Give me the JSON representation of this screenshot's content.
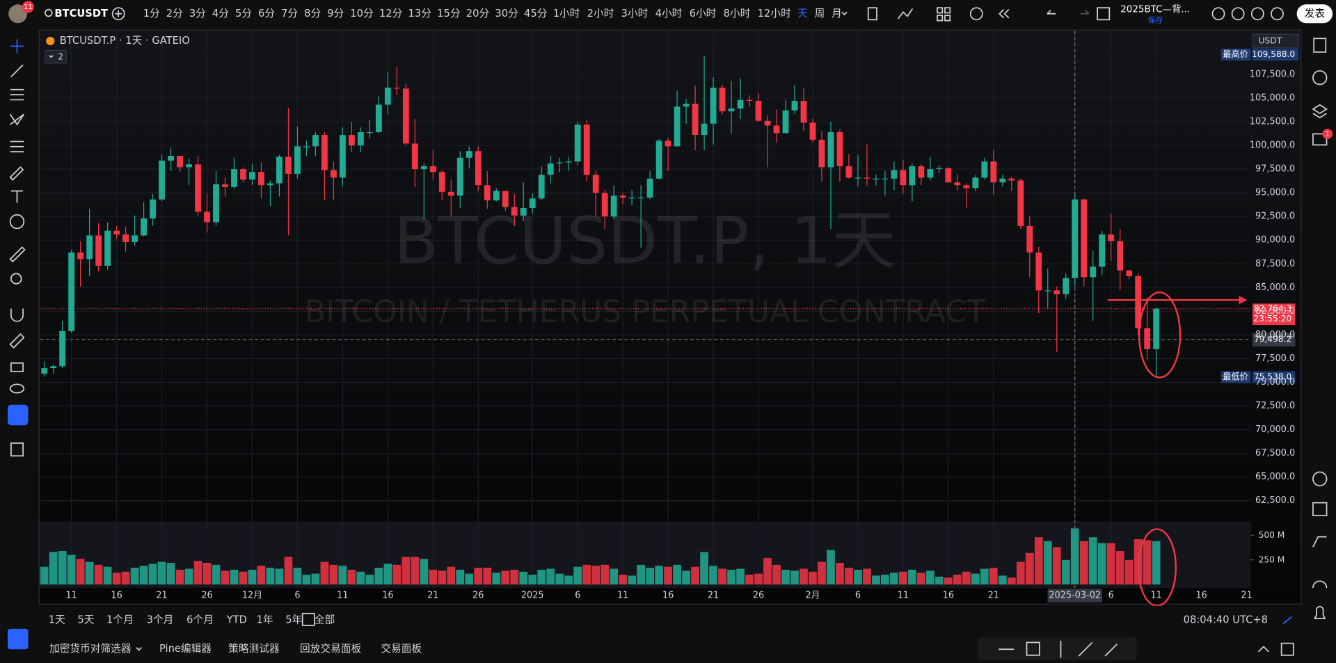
{
  "toolbar": {
    "badge": "11",
    "symbol": "BTCUSDT",
    "intervals": [
      "1分",
      "2分",
      "3分",
      "4分",
      "5分",
      "6分",
      "7分",
      "8分",
      "9分",
      "10分",
      "12分",
      "13分",
      "15分",
      "20分",
      "30分",
      "45分",
      "1小时",
      "2小时",
      "3小时",
      "4小时",
      "6小时",
      "8小时",
      "12小时",
      "天",
      "周",
      "月"
    ],
    "layout_name": "2025BTC—背...",
    "save": "保存",
    "publish": "发表"
  },
  "chart_data": {
    "type": "candlestick",
    "legend_title": "BTCUSDT.P · 1天 · GATEIO",
    "indicator_count": "2",
    "watermark": "BTCUSDT.P, 1天",
    "watermark_sub": "BITCOIN / TETHERUS PERPETUAL CONTRACT",
    "currency": "USDT",
    "up_color": "#22ab94",
    "down_color": "#f23645",
    "categories": [
      null,
      null,
      null,
      "11",
      null,
      null,
      null,
      null,
      "16",
      null,
      null,
      null,
      null,
      "21",
      null,
      null,
      null,
      null,
      "26",
      null,
      null,
      null,
      null,
      "12月",
      null,
      null,
      null,
      null,
      "6",
      null,
      null,
      null,
      null,
      "11",
      null,
      null,
      null,
      null,
      "16",
      null,
      null,
      null,
      null,
      "21",
      null,
      null,
      null,
      null,
      "26",
      null,
      null,
      null,
      null,
      null,
      "2025",
      null,
      null,
      null,
      null,
      "6",
      null,
      null,
      null,
      null,
      "11",
      null,
      null,
      null,
      null,
      "16",
      null,
      null,
      null,
      null,
      "21",
      null,
      null,
      null,
      null,
      "26",
      null,
      null,
      null,
      null,
      null,
      "2月",
      null,
      null,
      null,
      null,
      "6",
      null,
      null,
      null,
      null,
      "11",
      null,
      null,
      null,
      null,
      "16",
      null,
      null,
      null,
      null,
      "21",
      null,
      null,
      null,
      null,
      null,
      null,
      null,
      null,
      "2025-03-02",
      null,
      null,
      null,
      "6",
      null,
      null,
      null,
      null,
      "11"
    ],
    "future_categories": [
      "16",
      "21"
    ],
    "ohlc": [
      [
        75900,
        77200,
        75600,
        76500
      ],
      [
        76500,
        76900,
        75900,
        76700
      ],
      [
        76700,
        81500,
        76500,
        80400
      ],
      [
        80400,
        89000,
        80200,
        88700
      ],
      [
        88700,
        89900,
        85100,
        88000
      ],
      [
        88000,
        93300,
        86200,
        90500
      ],
      [
        90500,
        91800,
        86700,
        87300
      ],
      [
        87300,
        91900,
        86900,
        91000
      ],
      [
        91000,
        91500,
        90100,
        90600
      ],
      [
        90600,
        91400,
        88800,
        89800
      ],
      [
        89800,
        92600,
        89400,
        90500
      ],
      [
        90500,
        94000,
        90400,
        92300
      ],
      [
        92300,
        94900,
        91500,
        94300
      ],
      [
        94300,
        99000,
        94100,
        98400
      ],
      [
        98400,
        99800,
        97300,
        98900
      ],
      [
        98900,
        98900,
        97200,
        97700
      ],
      [
        97700,
        98600,
        95800,
        98000
      ],
      [
        98000,
        98900,
        92600,
        93000
      ],
      [
        93000,
        94900,
        90800,
        91900
      ],
      [
        91900,
        97300,
        91500,
        95900
      ],
      [
        95900,
        96600,
        94600,
        95600
      ],
      [
        95600,
        98700,
        95400,
        97500
      ],
      [
        97500,
        97700,
        96100,
        96400
      ],
      [
        96400,
        98000,
        95800,
        97200
      ],
      [
        97200,
        98200,
        94400,
        95800
      ],
      [
        95800,
        96300,
        93600,
        96000
      ],
      [
        96000,
        99000,
        94600,
        98800
      ],
      [
        98800,
        104000,
        90500,
        97000
      ],
      [
        97000,
        102000,
        96500,
        99900
      ],
      [
        99900,
        100500,
        98900,
        99900
      ],
      [
        99900,
        101400,
        98900,
        101100
      ],
      [
        101100,
        101400,
        94200,
        97400
      ],
      [
        97400,
        98300,
        94300,
        96600
      ],
      [
        96600,
        101900,
        95700,
        101100
      ],
      [
        101100,
        102500,
        99300,
        100000
      ],
      [
        100000,
        101900,
        99300,
        101400
      ],
      [
        101400,
        102700,
        100800,
        101400
      ],
      [
        101400,
        105200,
        101300,
        104300
      ],
      [
        104300,
        107800,
        103300,
        106100
      ],
      [
        106100,
        108300,
        105300,
        106000
      ],
      [
        106000,
        106500,
        100000,
        100200
      ],
      [
        100200,
        102800,
        95600,
        97500
      ],
      [
        97500,
        98100,
        92200,
        97800
      ],
      [
        97800,
        99500,
        96400,
        97200
      ],
      [
        97200,
        97400,
        94200,
        95100
      ],
      [
        95100,
        96400,
        92500,
        94700
      ],
      [
        94700,
        99400,
        93400,
        98700
      ],
      [
        98700,
        99900,
        97600,
        99400
      ],
      [
        99400,
        99900,
        95200,
        95800
      ],
      [
        95800,
        97300,
        93300,
        94200
      ],
      [
        94200,
        95500,
        94100,
        95200
      ],
      [
        95200,
        95200,
        93100,
        93500
      ],
      [
        93500,
        94900,
        91500,
        92600
      ],
      [
        92600,
        96100,
        92000,
        93400
      ],
      [
        93400,
        94900,
        92800,
        94400
      ],
      [
        94400,
        97800,
        94200,
        96900
      ],
      [
        96900,
        98900,
        96000,
        98100
      ],
      [
        98100,
        98700,
        97200,
        98200
      ],
      [
        98200,
        98800,
        97300,
        98300
      ],
      [
        98300,
        102500,
        97900,
        102200
      ],
      [
        102200,
        102700,
        96200,
        96900
      ],
      [
        96900,
        97300,
        92500,
        95000
      ],
      [
        95000,
        95300,
        91200,
        92500
      ],
      [
        92500,
        95800,
        92200,
        94700
      ],
      [
        94700,
        95000,
        93800,
        94500
      ],
      [
        94500,
        95300,
        93700,
        94500
      ],
      [
        94500,
        95800,
        89200,
        94500
      ],
      [
        94500,
        97300,
        94300,
        96500
      ],
      [
        96500,
        100700,
        96400,
        100500
      ],
      [
        100500,
        100800,
        97300,
        99900
      ],
      [
        99900,
        105800,
        99900,
        104100
      ],
      [
        104100,
        104900,
        102300,
        104400
      ],
      [
        104400,
        106300,
        99500,
        101100
      ],
      [
        101100,
        109400,
        99500,
        102300
      ],
      [
        102300,
        107200,
        100100,
        106100
      ],
      [
        106100,
        106400,
        103300,
        103600
      ],
      [
        103600,
        106800,
        101200,
        103900
      ],
      [
        103900,
        107100,
        102800,
        104800
      ],
      [
        104800,
        105300,
        104100,
        104700
      ],
      [
        104700,
        105500,
        102500,
        102600
      ],
      [
        102600,
        103200,
        97700,
        102100
      ],
      [
        102100,
        103800,
        100300,
        101300
      ],
      [
        101300,
        104800,
        101300,
        103700
      ],
      [
        103700,
        106400,
        103300,
        104700
      ],
      [
        104700,
        106000,
        101500,
        102400
      ],
      [
        102400,
        102800,
        100300,
        100600
      ],
      [
        100600,
        101500,
        96200,
        97700
      ],
      [
        97700,
        102500,
        91200,
        101400
      ],
      [
        101400,
        101700,
        96200,
        97800
      ],
      [
        97800,
        99100,
        96500,
        96600
      ],
      [
        96600,
        99000,
        95700,
        96600
      ],
      [
        96600,
        100100,
        95700,
        96500
      ],
      [
        96500,
        96900,
        95800,
        96500
      ],
      [
        96500,
        97300,
        94700,
        96500
      ],
      [
        96500,
        98300,
        95300,
        97400
      ],
      [
        97400,
        98500,
        94900,
        95800
      ],
      [
        95800,
        98100,
        94100,
        97800
      ],
      [
        97800,
        98000,
        95800,
        96600
      ],
      [
        96600,
        98800,
        96300,
        97500
      ],
      [
        97500,
        97900,
        97100,
        97600
      ],
      [
        97600,
        97700,
        96100,
        96100
      ],
      [
        96100,
        97000,
        95200,
        95800
      ],
      [
        95800,
        96000,
        93400,
        95500
      ],
      [
        95500,
        96900,
        95200,
        96600
      ],
      [
        96600,
        98700,
        96400,
        98300
      ],
      [
        98300,
        99500,
        94800,
        96100
      ],
      [
        96100,
        96900,
        95700,
        96500
      ],
      [
        96500,
        96700,
        95200,
        96300
      ],
      [
        96300,
        96500,
        91200,
        91500
      ],
      [
        91500,
        92500,
        86100,
        88700
      ],
      [
        88700,
        89300,
        82300,
        84700
      ],
      [
        84700,
        87000,
        82800,
        84700
      ],
      [
        84700,
        85100,
        78200,
        84300
      ],
      [
        84300,
        86500,
        83800,
        86000
      ],
      [
        86000,
        95000,
        85100,
        94300
      ],
      [
        94300,
        94400,
        85100,
        86100
      ],
      [
        86100,
        88900,
        81500,
        87200
      ],
      [
        87200,
        91000,
        86300,
        90600
      ],
      [
        90600,
        92800,
        87800,
        89900
      ],
      [
        89900,
        91200,
        84700,
        86800
      ],
      [
        86800,
        86900,
        85900,
        86200
      ],
      [
        86200,
        86500,
        80000,
        80700
      ],
      [
        80700,
        84000,
        77400,
        78500
      ],
      [
        78500,
        82900,
        75538,
        82764.3
      ]
    ],
    "ylim": [
      60400,
      112100
    ],
    "yticks": [
      {
        "value": 107500,
        "label": "107,500.0"
      },
      {
        "value": 105000,
        "label": "105,000.0"
      },
      {
        "value": 102500,
        "label": "102,500.0"
      },
      {
        "value": 100000,
        "label": "100,000.0"
      },
      {
        "value": 97500,
        "label": "97,500.0"
      },
      {
        "value": 95000,
        "label": "95,000.0"
      },
      {
        "value": 92500,
        "label": "92,500.0"
      },
      {
        "value": 90000,
        "label": "90,000.0"
      },
      {
        "value": 87500,
        "label": "87,500.0"
      },
      {
        "value": 85000,
        "label": "85,000.0"
      },
      {
        "value": 82500,
        "label": "82,500.0"
      },
      {
        "value": 80000,
        "label": "80,000.0"
      },
      {
        "value": 77500,
        "label": "77,500.0"
      },
      {
        "value": 75000,
        "label": "75,000.0"
      },
      {
        "value": 72500,
        "label": "72,500.0"
      },
      {
        "value": 70000,
        "label": "70,000.0"
      },
      {
        "value": 67500,
        "label": "67,500.0"
      },
      {
        "value": 65000,
        "label": "65,000.0"
      },
      {
        "value": 62500,
        "label": "62,500.0"
      }
    ],
    "grid": true,
    "price_labels": {
      "high_title": "最高价",
      "high": {
        "value": 109588,
        "label": "109,588.0"
      },
      "last": {
        "value": 82764.3,
        "label": "82,764.3"
      },
      "countdown": "23:55:20",
      "crosshair": {
        "value": 79498.2,
        "label": "79,498.2"
      },
      "low_title": "最低价",
      "low": {
        "value": 75538,
        "label": "75,538.0"
      }
    },
    "volume": {
      "values": [
        180,
        330,
        340,
        300,
        260,
        230,
        200,
        180,
        120,
        130,
        170,
        190,
        210,
        230,
        220,
        150,
        160,
        240,
        220,
        200,
        140,
        150,
        130,
        150,
        190,
        170,
        160,
        280,
        170,
        100,
        110,
        230,
        200,
        190,
        150,
        130,
        100,
        170,
        210,
        200,
        280,
        280,
        260,
        150,
        140,
        180,
        150,
        110,
        170,
        170,
        120,
        140,
        150,
        130,
        100,
        150,
        160,
        110,
        90,
        180,
        200,
        190,
        200,
        160,
        100,
        90,
        200,
        170,
        190,
        180,
        200,
        140,
        180,
        330,
        190,
        160,
        150,
        160,
        100,
        110,
        270,
        200,
        150,
        140,
        160,
        130,
        230,
        350,
        220,
        170,
        150,
        160,
        90,
        100,
        120,
        130,
        150,
        120,
        140,
        80,
        70,
        100,
        130,
        110,
        160,
        170,
        90,
        70,
        230,
        320,
        480,
        440,
        380,
        250,
        570,
        440,
        480,
        420,
        420,
        340,
        250,
        460,
        450,
        440
      ],
      "ylim": [
        0,
        640
      ],
      "yticks": [
        {
          "value": 250,
          "label": "250 M"
        },
        {
          "value": 500,
          "label": "500 M"
        }
      ]
    }
  },
  "range_bar": {
    "ranges": [
      "1天",
      "5天",
      "1个月",
      "3个月",
      "6个月",
      "YTD",
      "1年",
      "5年",
      "全部"
    ],
    "clock": "08:04:40 UTC+8"
  },
  "bottom_tabs": [
    "加密货币对筛选器",
    "Pine编辑器",
    "策略测试器",
    "回放交易面板",
    "交易面板"
  ],
  "notification_badge": "1"
}
